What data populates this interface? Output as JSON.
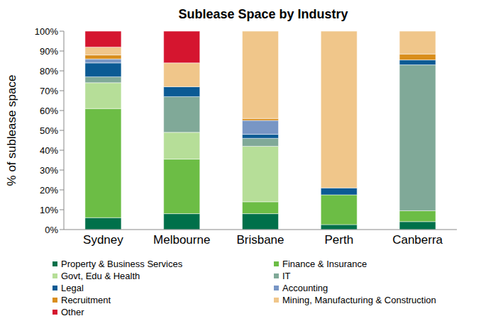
{
  "chart_data": {
    "type": "bar",
    "title": "Sublease Space by Industry",
    "y_label": "% of sublease space",
    "categories": [
      "Sydney",
      "Melbourne",
      "Brisbane",
      "Perth",
      "Canberra"
    ],
    "stacked": true,
    "grid": false,
    "legend": "bottom",
    "ylim": [
      0,
      100
    ],
    "yticks": [
      {
        "value": 0,
        "label": "0%"
      },
      {
        "value": 10,
        "label": "10%"
      },
      {
        "value": 20,
        "label": "20%"
      },
      {
        "value": 30,
        "label": "30%"
      },
      {
        "value": 40,
        "label": "40%"
      },
      {
        "value": 50,
        "label": "50%"
      },
      {
        "value": 60,
        "label": "60%"
      },
      {
        "value": 70,
        "label": "70%"
      },
      {
        "value": 80,
        "label": "80%"
      },
      {
        "value": 90,
        "label": "90%"
      },
      {
        "value": 100,
        "label": "100%"
      }
    ],
    "series": [
      {
        "name": "Property & Business Services",
        "color": "#00704a",
        "values": [
          6,
          8,
          8,
          2.5,
          4
        ]
      },
      {
        "name": "Finance & Insurance",
        "color": "#6cbd45",
        "values": [
          55,
          27.5,
          6,
          15,
          5.5
        ]
      },
      {
        "name": "Govt, Edu & Health",
        "color": "#b6de98",
        "values": [
          13,
          13.5,
          28,
          0,
          0
        ]
      },
      {
        "name": "IT",
        "color": "#80a998",
        "values": [
          3,
          18,
          4,
          0,
          73.5
        ]
      },
      {
        "name": "Legal",
        "color": "#0b5a94",
        "values": [
          7,
          5,
          2,
          3.5,
          2.5
        ]
      },
      {
        "name": "Accounting",
        "color": "#7896c5",
        "values": [
          2,
          0,
          7,
          0,
          0
        ]
      },
      {
        "name": "Recruitment",
        "color": "#d98e1c",
        "values": [
          2,
          0,
          1,
          0,
          3
        ]
      },
      {
        "name": "Mining, Manufacturing & Construction",
        "color": "#f0c68a",
        "values": [
          4,
          12,
          44,
          79,
          11.5
        ]
      },
      {
        "name": "Other",
        "color": "#d5152f",
        "values": [
          8,
          16,
          0,
          0,
          0
        ]
      }
    ]
  }
}
